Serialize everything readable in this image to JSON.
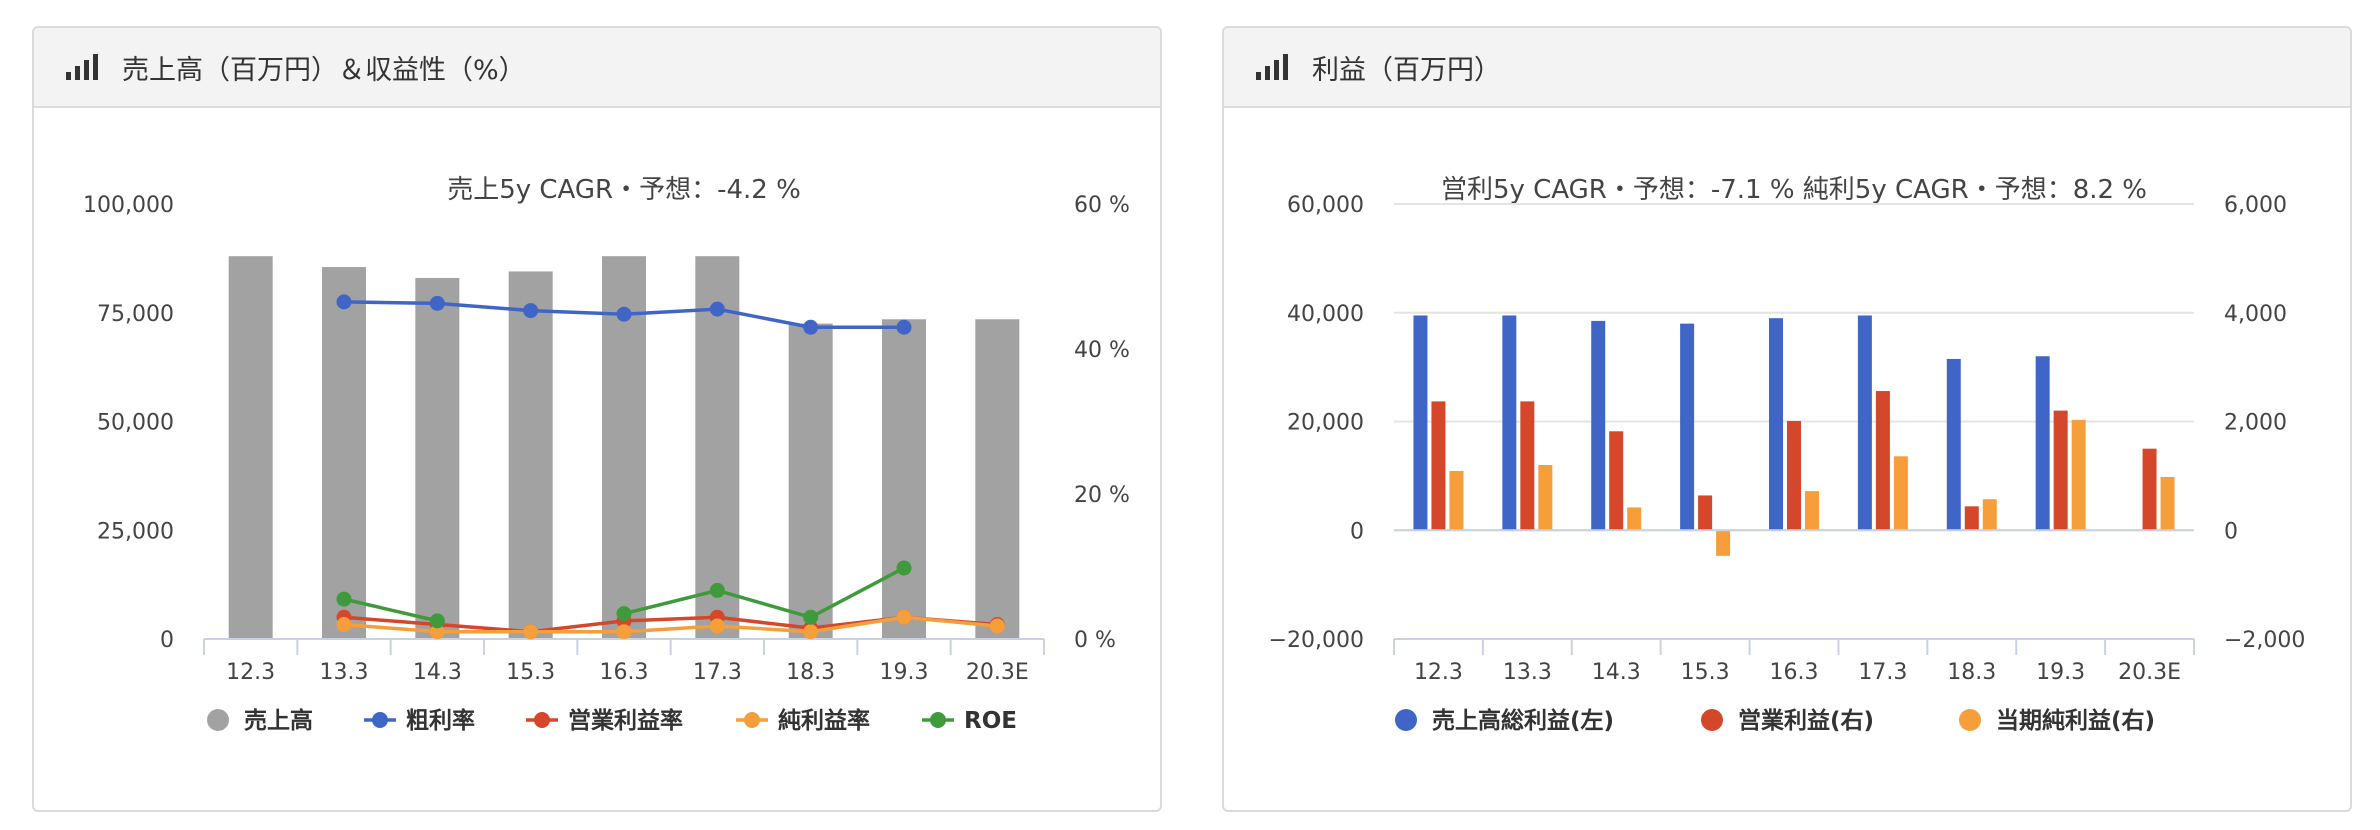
{
  "left_panel": {
    "title": "売上高（百万円）＆収益性（%）"
  },
  "right_panel": {
    "title": "利益（百万円）"
  },
  "chart_data": [
    {
      "type": "bar",
      "title": "売上5y CAGR・予想：-4.2 %",
      "categories": [
        "12.3",
        "13.3",
        "14.3",
        "15.3",
        "16.3",
        "17.3",
        "18.3",
        "19.3",
        "20.3E"
      ],
      "y_left": {
        "ticks": [
          "100,000",
          "75,000",
          "50,000",
          "25,000",
          "0"
        ],
        "range": [
          0,
          100000
        ]
      },
      "y_right": {
        "ticks": [
          "60 %",
          "40 %",
          "20 %",
          "0 %"
        ],
        "range": [
          0,
          60
        ]
      },
      "series": [
        {
          "name": "売上高",
          "kind": "bar",
          "axis": "left",
          "color": "#a3a2a2",
          "values": [
            88000,
            85500,
            83000,
            84500,
            88000,
            88000,
            72500,
            73500,
            73500
          ]
        },
        {
          "name": "粗利率",
          "kind": "line",
          "axis": "right",
          "color": "#3f66c7",
          "values": [
            null,
            46.5,
            46.3,
            45.3,
            44.8,
            45.5,
            43.0,
            43.0,
            null
          ]
        },
        {
          "name": "営業利益率",
          "kind": "line",
          "axis": "right",
          "color": "#d4472a",
          "values": [
            null,
            3.0,
            2.0,
            1.0,
            2.5,
            3.0,
            1.5,
            3.0,
            2.0
          ]
        },
        {
          "name": "純利益率",
          "kind": "line",
          "axis": "right",
          "color": "#f59e3a",
          "values": [
            null,
            2.0,
            1.0,
            1.0,
            1.0,
            1.8,
            1.0,
            3.0,
            1.8
          ]
        },
        {
          "name": "ROE",
          "kind": "line",
          "axis": "right",
          "color": "#3e9a3a",
          "values": [
            null,
            5.5,
            2.5,
            null,
            3.5,
            6.7,
            3.0,
            9.8,
            null
          ]
        }
      ],
      "legend_position": "bottom",
      "grid": false
    },
    {
      "type": "bar",
      "title": "営利5y CAGR・予想：-7.1 %   純利5y CAGR・予想：8.2 %",
      "categories": [
        "12.3",
        "13.3",
        "14.3",
        "15.3",
        "16.3",
        "17.3",
        "18.3",
        "19.3",
        "20.3E"
      ],
      "y_left": {
        "ticks": [
          "60,000",
          "40,000",
          "20,000",
          "0",
          "−20,000"
        ],
        "range": [
          -20000,
          60000
        ]
      },
      "y_right": {
        "ticks": [
          "6,000",
          "4,000",
          "2,000",
          "0",
          "−2,000"
        ],
        "range": [
          -2000,
          6000
        ]
      },
      "series": [
        {
          "name": "売上高総利益(左)",
          "kind": "bar",
          "axis": "left",
          "color": "#3f66c7",
          "values": [
            39500,
            39500,
            38500,
            38000,
            39000,
            39500,
            31500,
            32000,
            null
          ]
        },
        {
          "name": "営業利益(右)",
          "kind": "bar",
          "axis": "right",
          "color": "#d4472a",
          "values": [
            2370,
            2370,
            1820,
            640,
            2010,
            2560,
            440,
            2200,
            1500
          ]
        },
        {
          "name": "当期純利益(右)",
          "kind": "bar",
          "axis": "right",
          "color": "#f59e3a",
          "values": [
            1090,
            1200,
            420,
            -470,
            720,
            1360,
            570,
            2030,
            980
          ]
        }
      ],
      "legend_position": "bottom",
      "grid": true
    }
  ]
}
